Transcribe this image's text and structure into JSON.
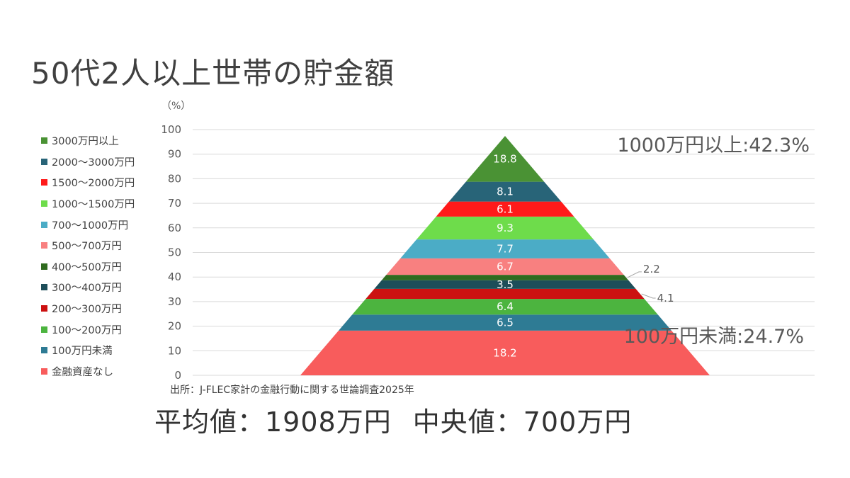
{
  "title": "50代2人以上世帯の貯金額",
  "source_note": "出所：J-FLEC家計の金融行動に関する世論調査2025年",
  "summary": {
    "mean": "平均値：1908万円",
    "median": "中央値：700万円"
  },
  "chart_data": {
    "type": "bar",
    "subtype": "stacked pyramid (percent)",
    "y_unit_label": "（%）",
    "ylim": [
      0,
      100
    ],
    "yticks": [
      0,
      10,
      20,
      30,
      40,
      50,
      60,
      70,
      80,
      90,
      100
    ],
    "grid": true,
    "legend_position": "left",
    "segments": [
      {
        "name": "金融資産なし",
        "value": 18.2,
        "color": "#F85C5C",
        "label_side": "inside"
      },
      {
        "name": "100万円未満",
        "value": 6.5,
        "color": "#2E7B94",
        "label_side": "inside"
      },
      {
        "name": "100～200万円",
        "value": 6.4,
        "color": "#4CB43F",
        "label_side": "inside"
      },
      {
        "name": "200～300万円",
        "value": 4.1,
        "color": "#CC1111",
        "label_side": "outside"
      },
      {
        "name": "300～400万円",
        "value": 3.5,
        "color": "#1D4E59",
        "label_side": "inside"
      },
      {
        "name": "400～500万円",
        "value": 2.2,
        "color": "#2F6B1F",
        "label_side": "outside"
      },
      {
        "name": "500～700万円",
        "value": 6.7,
        "color": "#F88080",
        "label_side": "inside"
      },
      {
        "name": "700～1000万円",
        "value": 7.7,
        "color": "#4BACC6",
        "label_side": "inside"
      },
      {
        "name": "1000～1500万円",
        "value": 9.3,
        "color": "#6EDC4B",
        "label_side": "inside"
      },
      {
        "name": "1500～2000万円",
        "value": 6.1,
        "color": "#FF1A1A",
        "label_side": "inside"
      },
      {
        "name": "2000～3000万円",
        "value": 8.1,
        "color": "#286478",
        "label_side": "inside"
      },
      {
        "name": "3000万円以上",
        "value": 18.8,
        "color": "#4A9234",
        "label_side": "inside"
      }
    ],
    "annotations": [
      {
        "text": "1000万円以上:42.3%",
        "anchor": "top-right"
      },
      {
        "text": "100万円未満:24.7%",
        "anchor": "lower-right"
      }
    ]
  }
}
